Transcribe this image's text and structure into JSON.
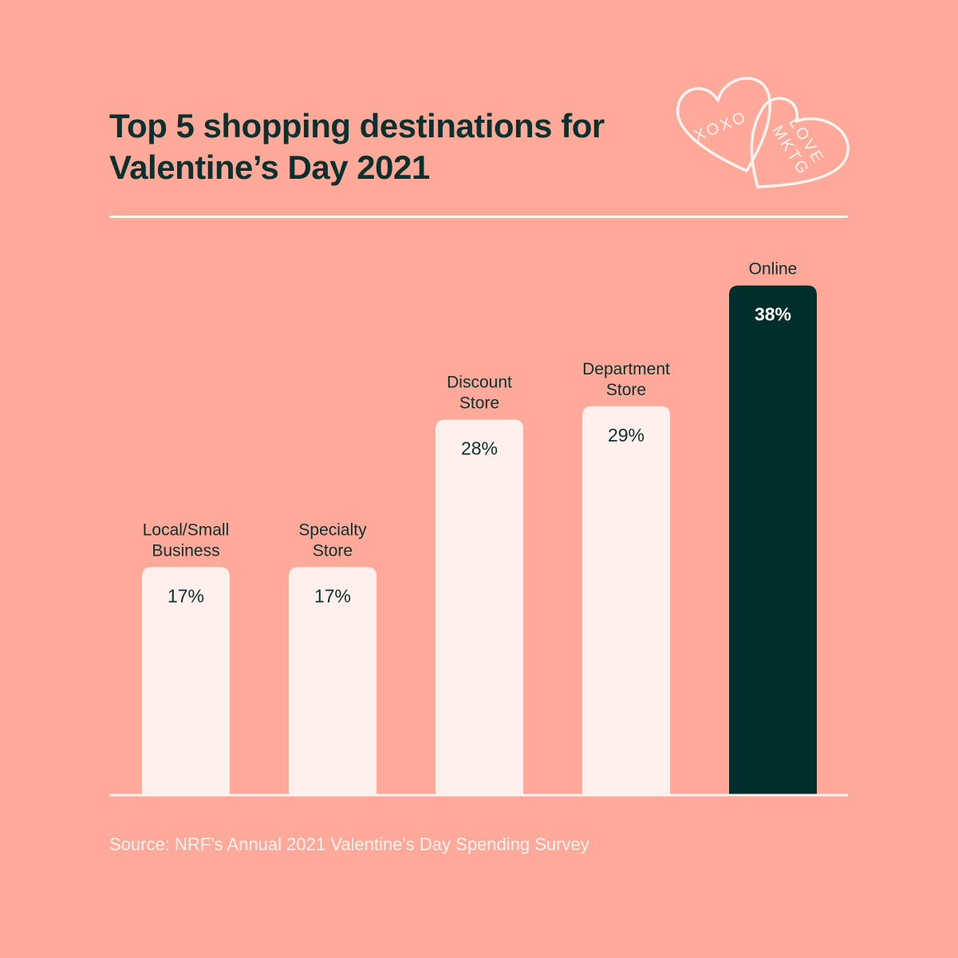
{
  "title": {
    "line1": "Top 5 shopping destinations for",
    "line2": "Valentine’s Day 2021"
  },
  "logo": {
    "heart_left_text": "XOXO",
    "heart_right_text": [
      "LOVE",
      "MKTG"
    ]
  },
  "chart_data": {
    "type": "bar",
    "title": "Top 5 shopping destinations for Valentine’s Day 2021",
    "categories": [
      [
        "Local/Small",
        "Business"
      ],
      [
        "Specialty",
        "Store"
      ],
      [
        "Discount",
        "Store"
      ],
      [
        "Department",
        "Store"
      ],
      [
        "Online"
      ]
    ],
    "values": [
      17,
      17,
      28,
      29,
      38
    ],
    "value_labels": [
      "17%",
      "17%",
      "28%",
      "29%",
      "38%"
    ],
    "unit": "%",
    "highlight_index": 4,
    "ylim": [
      0,
      45
    ],
    "grid": false,
    "axes_visible": false,
    "colors": {
      "bar": "#fff0ed",
      "highlight": "#002e2c",
      "label_dark": "#0b302d",
      "label_light": "#ffffff",
      "baseline": "#fff3ef"
    }
  },
  "source": "Source: NRF’s Annual 2021 Valentine’s Day Spending Survey"
}
